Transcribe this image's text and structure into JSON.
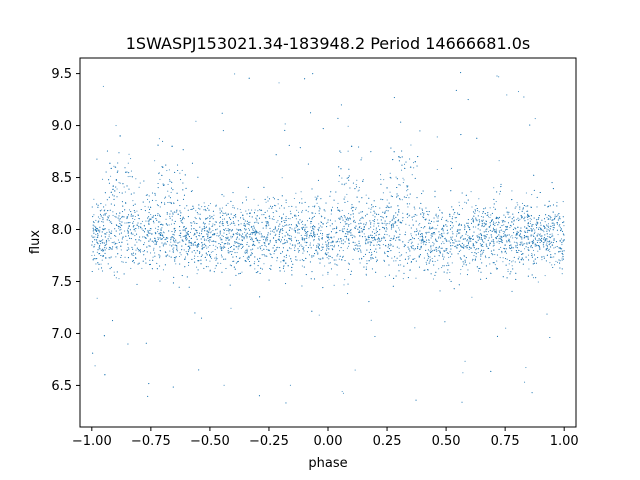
{
  "chart_data": {
    "type": "scatter",
    "title": "1SWASPJ153021.34-183948.2 Period 14666681.0s",
    "xlabel": "phase",
    "ylabel": "flux",
    "xlim": [
      -1.05,
      1.05
    ],
    "ylim": [
      6.1,
      9.65
    ],
    "grid": false,
    "legend": "none",
    "marker_color": "#1f77b4",
    "x_ticks": [
      -1.0,
      -0.75,
      -0.5,
      -0.25,
      0.0,
      0.25,
      0.5,
      0.75,
      1.0
    ],
    "x_tick_labels": [
      "−1.00",
      "−0.75",
      "−0.50",
      "−0.25",
      "0.00",
      "0.25",
      "0.50",
      "0.75",
      "1.00"
    ],
    "y_ticks": [
      6.5,
      7.0,
      7.5,
      8.0,
      8.5,
      9.0,
      9.5
    ],
    "y_tick_labels": [
      "6.5",
      "7.0",
      "7.5",
      "8.0",
      "8.5",
      "9.0",
      "9.5"
    ],
    "series": [
      {
        "description_of_distribution": "dense folded light-curve points across phase -1 to 1, core band 7.5-8.3, flares to ~9.0 near phases -0.9, -0.65, 0.1, 0.3, sparse outliers 6.3-9.55",
        "points": [
          [
            -0.98,
            7.9
          ],
          [
            -0.95,
            8.0
          ],
          [
            -0.9,
            8.6
          ],
          [
            -0.88,
            8.9
          ],
          [
            -0.85,
            7.8
          ],
          [
            -0.8,
            7.9
          ],
          [
            -0.75,
            8.1
          ],
          [
            -0.7,
            8.6
          ],
          [
            -0.66,
            8.8
          ],
          [
            -0.6,
            7.9
          ],
          [
            -0.55,
            7.7
          ],
          [
            -0.5,
            7.9
          ],
          [
            -0.45,
            7.8
          ],
          [
            -0.4,
            7.95
          ],
          [
            -0.35,
            7.7
          ],
          [
            -0.3,
            7.9
          ],
          [
            -0.25,
            7.8
          ],
          [
            -0.2,
            8.0
          ],
          [
            -0.15,
            7.85
          ],
          [
            -0.1,
            7.9
          ],
          [
            -0.05,
            7.8
          ],
          [
            0.0,
            7.95
          ],
          [
            0.05,
            8.1
          ],
          [
            0.1,
            8.8
          ],
          [
            0.15,
            8.0
          ],
          [
            0.2,
            7.9
          ],
          [
            0.25,
            8.4
          ],
          [
            0.3,
            8.7
          ],
          [
            0.35,
            8.6
          ],
          [
            0.4,
            7.9
          ],
          [
            0.45,
            7.8
          ],
          [
            0.5,
            7.9
          ],
          [
            0.55,
            7.85
          ],
          [
            0.6,
            8.0
          ],
          [
            0.65,
            7.8
          ],
          [
            0.7,
            7.9
          ],
          [
            0.75,
            7.85
          ],
          [
            0.8,
            7.95
          ],
          [
            0.85,
            7.8
          ],
          [
            0.9,
            7.9
          ],
          [
            0.95,
            7.85
          ],
          [
            1.0,
            7.9
          ]
        ]
      }
    ]
  }
}
